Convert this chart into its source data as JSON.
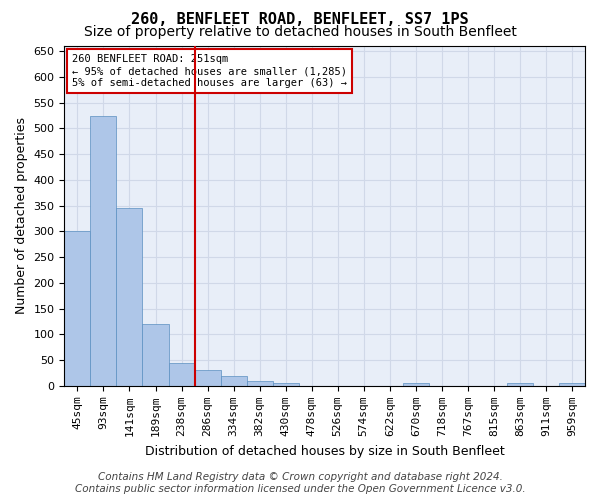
{
  "title": "260, BENFLEET ROAD, BENFLEET, SS7 1PS",
  "subtitle": "Size of property relative to detached houses in South Benfleet",
  "xlabel": "Distribution of detached houses by size in South Benfleet",
  "ylabel": "Number of detached properties",
  "footer_line1": "Contains HM Land Registry data © Crown copyright and database right 2024.",
  "footer_line2": "Contains public sector information licensed under the Open Government Licence v3.0.",
  "annotation_line1": "260 BENFLEET ROAD: 251sqm",
  "annotation_line2": "← 95% of detached houses are smaller (1,285)",
  "annotation_line3": "5% of semi-detached houses are larger (63) →",
  "bar_values": [
    300,
    525,
    345,
    120,
    45,
    30,
    20,
    10,
    5,
    0,
    0,
    0,
    0,
    5,
    0,
    0,
    0,
    5,
    0,
    5
  ],
  "categories": [
    "45sqm",
    "93sqm",
    "141sqm",
    "189sqm",
    "238sqm",
    "286sqm",
    "334sqm",
    "382sqm",
    "430sqm",
    "478sqm",
    "526sqm",
    "574sqm",
    "622sqm",
    "670sqm",
    "718sqm",
    "767sqm",
    "815sqm",
    "863sqm",
    "911sqm",
    "959sqm"
  ],
  "bar_color": "#aec6e8",
  "bar_edge_color": "#5a8fc0",
  "vline_x_idx": 5,
  "vline_color": "#cc0000",
  "ylim": [
    0,
    660
  ],
  "yticks": [
    0,
    50,
    100,
    150,
    200,
    250,
    300,
    350,
    400,
    450,
    500,
    550,
    600,
    650
  ],
  "grid_color": "#d0d8e8",
  "bg_color": "#e8eef8",
  "title_fontsize": 11,
  "subtitle_fontsize": 10,
  "axis_fontsize": 9,
  "tick_fontsize": 8,
  "footer_fontsize": 7.5
}
